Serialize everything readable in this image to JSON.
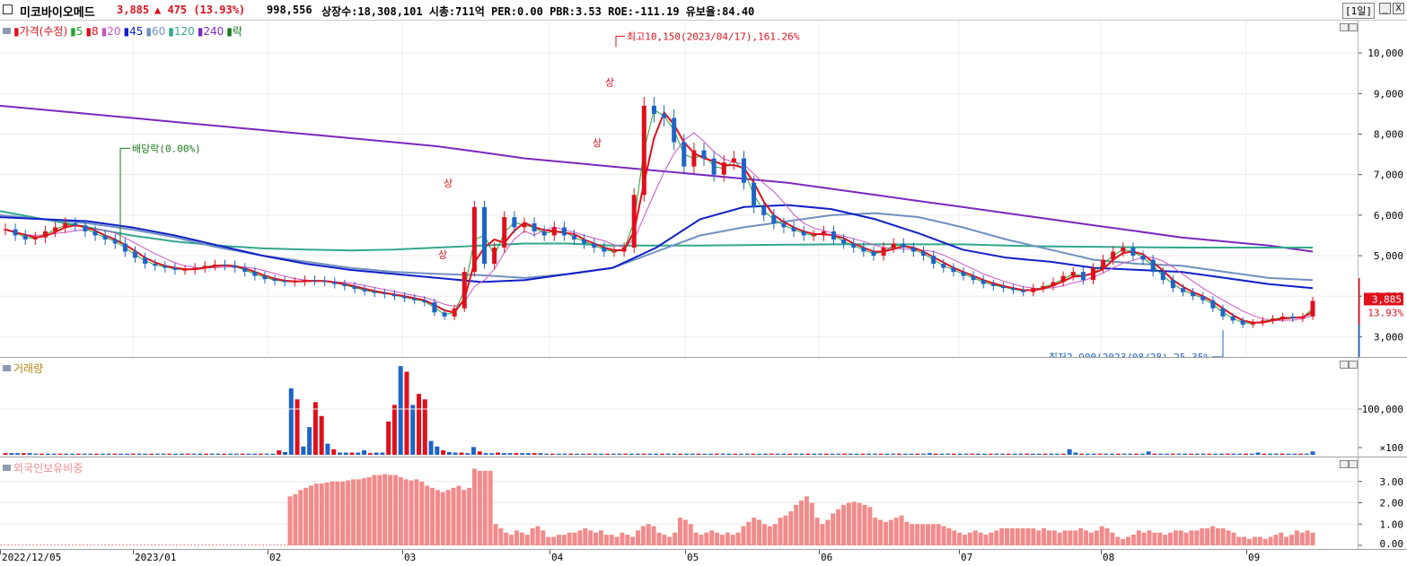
{
  "header": {
    "stock_name": "미코바이오메드",
    "price": "3,885",
    "change": "▲ 475 (13.93%)",
    "volume": "998,556",
    "info": "상장수:18,308,101 시총:711억 PER:0.00 PBR:3.53 ROE:-111.19 유보율:84.40",
    "period": "[1일]",
    "btn_min": "_",
    "btn_close": "X"
  },
  "colors": {
    "up": "#e0101c",
    "down": "#1e64c8",
    "ma5": "#21a52e",
    "ma8": "#e0101c",
    "ma20": "#cc55c4",
    "ma45": "#1020c8",
    "ma60": "#7090c0",
    "ma120": "#32a88c",
    "ma240": "#7a28c0",
    "foreign": "#f28b8b"
  },
  "price_legend": {
    "items": [
      {
        "label": "가격(수정)",
        "color": "#e0101c"
      },
      {
        "label": "5",
        "color": "#21a52e"
      },
      {
        "label": "8",
        "color": "#e0101c"
      },
      {
        "label": "20",
        "color": "#cc55c4"
      },
      {
        "label": "45",
        "color": "#1020c8"
      },
      {
        "label": "60",
        "color": "#7090c0"
      },
      {
        "label": "120",
        "color": "#32a88c"
      },
      {
        "label": "240",
        "color": "#7a28c0"
      },
      {
        "label": "락",
        "color": "#1a7a1a"
      }
    ]
  },
  "volume_legend": "거래량",
  "foreign_legend": "외국인보유비중",
  "annotations": {
    "high": "최고10,150(2023/04/17),161.26%",
    "low": "최저2,900(2023/08/28),25.35%",
    "dividend": "배당락(0.00%)",
    "limit_up": "상",
    "current_price": "3,885",
    "current_pct": "13.93%"
  },
  "chart_data": [
    {
      "type": "candlestick",
      "title": "가격(수정)",
      "ylim": [
        2500,
        10800
      ],
      "y_ticks": [
        "10,000",
        "9,000",
        "8,000",
        "7,000",
        "6,000",
        "5,000",
        "4,000",
        "3,000"
      ],
      "x_ticks": [
        "2022/12/05",
        "2023/01",
        "02",
        "03",
        "04",
        "05",
        "06",
        "07",
        "08",
        "09"
      ],
      "high": {
        "value": 10150,
        "date": "2023/04/17"
      },
      "low": {
        "value": 2900,
        "date": "2023/08/28"
      },
      "close_path": [
        5650,
        5500,
        5400,
        5450,
        5600,
        5700,
        5800,
        5750,
        5600,
        5500,
        5400,
        5300,
        5100,
        4950,
        4800,
        4750,
        4700,
        4650,
        4650,
        4700,
        4750,
        4780,
        4760,
        4700,
        4600,
        4500,
        4420,
        4380,
        4350,
        4360,
        4400,
        4380,
        4350,
        4300,
        4250,
        4180,
        4120,
        4080,
        4050,
        4000,
        3950,
        3900,
        3850,
        3600,
        3500,
        3700,
        4600,
        6200,
        4800,
        5200,
        5950,
        5700,
        5800,
        5600,
        5500,
        5700,
        5500,
        5400,
        5300,
        5200,
        5100,
        5100,
        5200,
        6500,
        8700,
        8500,
        8400,
        7800,
        7200,
        7600,
        7400,
        7000,
        7300,
        7400,
        6800,
        6200,
        6000,
        5800,
        5700,
        5600,
        5500,
        5500,
        5600,
        5400,
        5300,
        5200,
        5100,
        5000,
        5200,
        5300,
        5200,
        5100,
        5000,
        4800,
        4700,
        4600,
        4500,
        4400,
        4300,
        4250,
        4200,
        4150,
        4100,
        4200,
        4250,
        4350,
        4500,
        4600,
        4400,
        4700,
        4900,
        5100,
        5200,
        5000,
        4900,
        4600,
        4400,
        4200,
        4100,
        4000,
        3900,
        3700,
        3500,
        3400,
        3300,
        3350,
        3400,
        3450,
        3500,
        3450,
        3500,
        3885
      ],
      "ma_240_path": [
        8700,
        8600,
        8500,
        8400,
        8300,
        8200,
        8100,
        8000,
        7900,
        7800,
        7700,
        7550,
        7400,
        7300,
        7200,
        7100,
        7000,
        6900,
        6800,
        6650,
        6500,
        6350,
        6200,
        6050,
        5900,
        5750,
        5600,
        5450,
        5350,
        5250,
        5100
      ],
      "ma_120_path": [
        6100,
        5900,
        5700,
        5500,
        5350,
        5250,
        5180,
        5150,
        5130,
        5150,
        5200,
        5250,
        5300,
        5300,
        5250,
        5250,
        5250,
        5260,
        5270,
        5280,
        5280,
        5280,
        5280,
        5250,
        5230,
        5220,
        5210,
        5200,
        5200,
        5200,
        5200
      ],
      "ma_60_path": [
        6000,
        5900,
        5800,
        5650,
        5450,
        5200,
        5000,
        4850,
        4700,
        4600,
        4550,
        4520,
        4450,
        4550,
        4700,
        5100,
        5500,
        5700,
        5850,
        6000,
        6050,
        5950,
        5700,
        5400,
        5150,
        4900,
        4800,
        4750,
        4600,
        4450,
        4400
      ],
      "ma_45_path": [
        5950,
        5900,
        5850,
        5700,
        5500,
        5250,
        5000,
        4800,
        4650,
        4550,
        4450,
        4350,
        4400,
        4550,
        4700,
        5200,
        5900,
        6200,
        6250,
        6150,
        5900,
        5550,
        5150,
        4950,
        4850,
        4700,
        4650,
        4600,
        4450,
        4300,
        4200
      ]
    },
    {
      "type": "bar",
      "title": "거래량",
      "y_ticks": [
        "100,000",
        "×100"
      ],
      "values": [
        3,
        3,
        3,
        3,
        3,
        2,
        2,
        2,
        2,
        2,
        2,
        2,
        2,
        2,
        2,
        2,
        2,
        2,
        2,
        2,
        2,
        2,
        2,
        2,
        2,
        2,
        2,
        2,
        2,
        2,
        2,
        2,
        2,
        2,
        2,
        2,
        2,
        2,
        2,
        2,
        2,
        2,
        2,
        2,
        2,
        8,
        5,
        120,
        100,
        15,
        50,
        95,
        70,
        20,
        10,
        4,
        4,
        4,
        4,
        8,
        3,
        4,
        4,
        60,
        90,
        160,
        150,
        90,
        110,
        100,
        25,
        15,
        8,
        5,
        4,
        4,
        3,
        14,
        6,
        3,
        3,
        4,
        3,
        3,
        3,
        3,
        3,
        3,
        3,
        2,
        2,
        2,
        2,
        2,
        2,
        2,
        2,
        2,
        2,
        2,
        2,
        2,
        2,
        2,
        2,
        2,
        2,
        2,
        2,
        2,
        2,
        2,
        2,
        2,
        2,
        2,
        2,
        2,
        2,
        2,
        2,
        2,
        2,
        2,
        2,
        2,
        2,
        2,
        2,
        2,
        2,
        2,
        2,
        2,
        2,
        2,
        2,
        2,
        2,
        2,
        2,
        2,
        2,
        2,
        2,
        2,
        2,
        2,
        2,
        2,
        2,
        2,
        3,
        2,
        2,
        2,
        2,
        2,
        2,
        2,
        2,
        2,
        2,
        2,
        2,
        2,
        2,
        2,
        2,
        2,
        2,
        2,
        2,
        2,
        2,
        10,
        4,
        2,
        2,
        2,
        2,
        2,
        2,
        2,
        2,
        2,
        2,
        2,
        6,
        2,
        2,
        2,
        2,
        2,
        2,
        2,
        2,
        2,
        2,
        2,
        2,
        2,
        2,
        2,
        2,
        2,
        4,
        2,
        2,
        2,
        2,
        2,
        2,
        2,
        2,
        6
      ]
    },
    {
      "type": "bar",
      "title": "외국인보유비중",
      "ylim": [
        0,
        4
      ],
      "y_ticks": [
        "3.00",
        "2.00",
        "1.00",
        "0.00"
      ],
      "values": [
        0,
        0,
        0,
        0,
        0,
        0,
        0,
        0,
        0,
        0,
        0,
        0,
        0,
        0,
        0,
        0,
        0,
        0,
        0,
        0,
        0,
        0,
        0,
        0,
        0,
        0,
        0,
        0,
        0,
        0,
        0,
        0,
        0,
        0,
        0,
        0,
        0,
        0,
        0,
        0,
        0,
        0,
        0,
        0,
        0,
        0,
        0,
        0,
        0,
        0,
        0,
        0,
        0,
        0,
        2.3,
        2.4,
        2.6,
        2.7,
        2.8,
        2.9,
        2.9,
        2.95,
        3.0,
        3.0,
        3.0,
        3.05,
        3.1,
        3.1,
        3.15,
        3.2,
        3.3,
        3.3,
        3.35,
        3.3,
        3.3,
        3.2,
        3.1,
        3.05,
        3.1,
        3.0,
        2.8,
        2.7,
        2.6,
        2.5,
        2.6,
        2.7,
        2.8,
        2.6,
        2.7,
        3.6,
        3.5,
        3.5,
        3.5,
        1.0,
        0.8,
        0.6,
        0.5,
        0.7,
        0.6,
        0.5,
        0.8,
        0.9,
        0.7,
        0.4,
        0.4,
        0.5,
        0.5,
        0.6,
        0.6,
        0.7,
        0.8,
        0.7,
        0.6,
        0.7,
        0.5,
        0.5,
        0.4,
        0.6,
        0.5,
        0.4,
        0.7,
        0.9,
        1.0,
        0.9,
        0.6,
        0.5,
        0.4,
        0.6,
        1.3,
        1.2,
        1.0,
        0.6,
        0.5,
        0.6,
        0.7,
        0.6,
        0.5,
        0.6,
        0.5,
        0.6,
        0.9,
        1.1,
        1.3,
        1.2,
        1.0,
        0.9,
        1.0,
        1.3,
        1.4,
        1.6,
        1.9,
        2.1,
        2.3,
        2.0,
        1.3,
        1.0,
        1.2,
        1.5,
        1.7,
        1.9,
        2.0,
        2.05,
        2.0,
        1.9,
        1.8,
        1.3,
        1.2,
        1.1,
        1.2,
        1.3,
        1.4,
        1.1,
        1.0,
        1.0,
        1.0,
        1.0,
        1.0,
        1.0,
        0.9,
        0.8,
        0.7,
        0.6,
        0.5,
        0.6,
        0.7,
        0.6,
        0.5,
        0.6,
        0.7,
        0.8,
        0.8,
        0.8,
        0.8,
        0.8,
        0.8,
        0.8,
        0.7,
        0.8,
        0.7,
        0.7,
        0.6,
        0.7,
        0.7,
        0.7,
        0.8,
        0.7,
        0.6,
        0.7,
        0.9,
        0.8,
        0.6,
        0.4,
        0.3,
        0.4,
        0.5,
        0.7,
        0.6,
        0.7,
        0.6,
        0.6,
        0.5,
        0.6,
        0.7,
        0.7,
        0.6,
        0.7,
        0.7,
        0.8,
        0.8,
        0.9,
        0.8,
        0.8,
        0.7,
        0.6,
        0.4,
        0.4,
        0.3,
        0.4,
        0.4,
        0.3,
        0.4,
        0.5,
        0.6,
        0.4,
        0.5,
        0.7,
        0.6,
        0.7,
        0.6
      ]
    }
  ]
}
